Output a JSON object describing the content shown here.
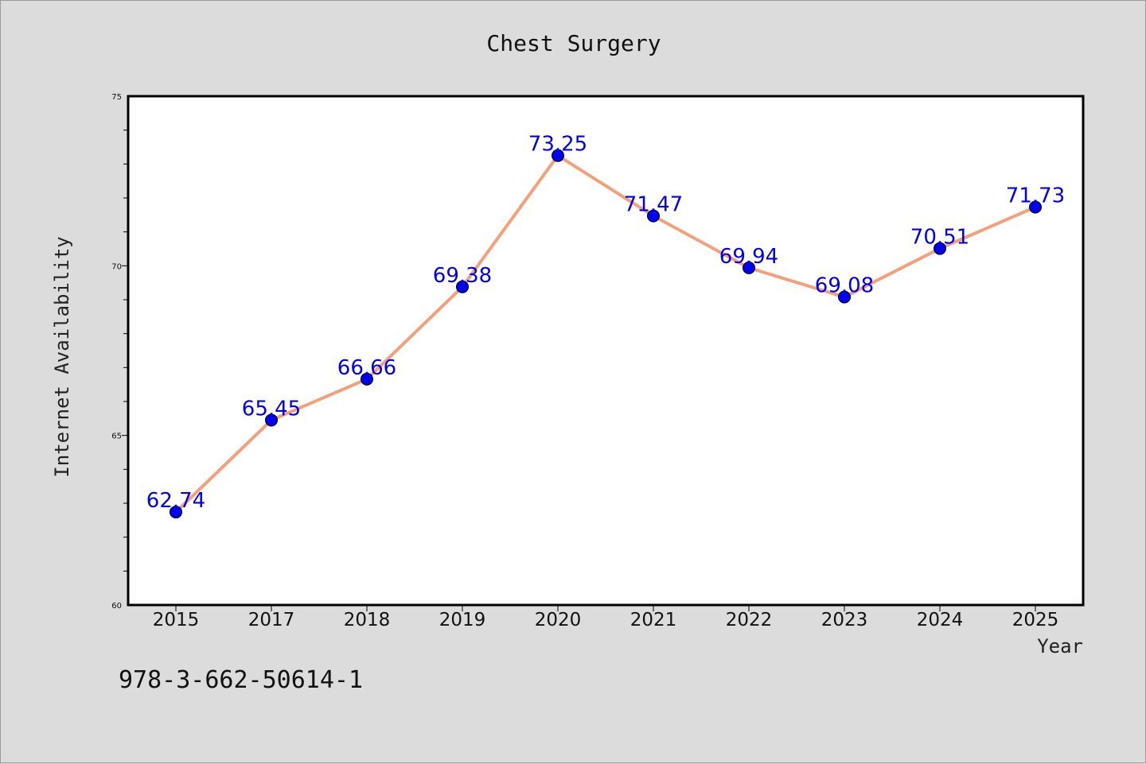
{
  "chart_data": {
    "type": "line",
    "title": "Chest Surgery",
    "xlabel": "Year",
    "ylabel": "Internet Availability",
    "categories": [
      "2015",
      "2017",
      "2018",
      "2019",
      "2020",
      "2021",
      "2022",
      "2023",
      "2024",
      "2025"
    ],
    "series": [
      {
        "values": [
          62.74,
          65.45,
          66.66,
          69.38,
          73.25,
          71.47,
          69.94,
          69.08,
          70.51,
          71.73
        ],
        "data_labels": [
          "62.74",
          "65.45",
          "66.66",
          "69.38",
          "73.25",
          "71.47",
          "69.94",
          "69.08",
          "70.51",
          "71.73"
        ],
        "line_color": "#f4a07a",
        "marker_color": "#0000ee",
        "label_color": "#0000ee"
      }
    ],
    "ylim": [
      60,
      75
    ],
    "yticks": [
      "60",
      "65",
      "70",
      "75"
    ],
    "grid": false,
    "legend": "none"
  },
  "footer": {
    "isbn": "978-3-662-50614-1"
  }
}
